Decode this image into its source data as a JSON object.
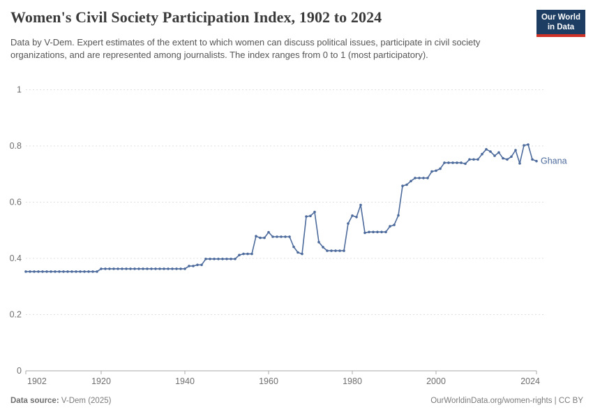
{
  "header": {
    "title": "Women's Civil Society Participation Index, 1902 to 2024",
    "subtitle": "Data by V-Dem. Expert estimates of the extent to which women can discuss political issues, participate in civil society organizations, and are represented among journalists. The index ranges from 0 to 1 (most participatory).",
    "logo": {
      "line1": "Our World",
      "line2": "in Data"
    }
  },
  "footer": {
    "source_label": "Data source:",
    "source_value": " V-Dem (2025)",
    "link": "OurWorldinData.org/women-rights | CC BY"
  },
  "chart_data": {
    "type": "line",
    "title": "Women's Civil Society Participation Index, 1902 to 2024",
    "xlabel": "",
    "ylabel": "",
    "xlim": [
      1902,
      2024
    ],
    "ylim": [
      0,
      1
    ],
    "x_ticks": [
      1902,
      1920,
      1940,
      1960,
      1980,
      2000,
      2024
    ],
    "y_ticks": [
      0,
      0.2,
      0.4,
      0.6,
      0.8,
      1
    ],
    "grid": "horizontal-dashed",
    "legend": "end-of-line-label",
    "colors": {
      "line": "#4c6a9c",
      "grid": "#dfdfdf",
      "axis": "#a8a8a8",
      "tick_label": "#6e6e6e"
    },
    "series": [
      {
        "name": "Ghana",
        "year_start": 1902,
        "year_step": 1,
        "values": [
          0.353,
          0.353,
          0.353,
          0.353,
          0.353,
          0.353,
          0.353,
          0.353,
          0.353,
          0.353,
          0.353,
          0.353,
          0.353,
          0.353,
          0.353,
          0.353,
          0.353,
          0.353,
          0.363,
          0.363,
          0.363,
          0.363,
          0.363,
          0.363,
          0.363,
          0.363,
          0.363,
          0.363,
          0.363,
          0.363,
          0.363,
          0.363,
          0.363,
          0.363,
          0.363,
          0.363,
          0.363,
          0.363,
          0.363,
          0.373,
          0.373,
          0.377,
          0.377,
          0.398,
          0.398,
          0.398,
          0.398,
          0.398,
          0.398,
          0.398,
          0.398,
          0.412,
          0.416,
          0.416,
          0.416,
          0.479,
          0.473,
          0.473,
          0.493,
          0.477,
          0.477,
          0.477,
          0.477,
          0.477,
          0.441,
          0.421,
          0.416,
          0.549,
          0.551,
          0.565,
          0.458,
          0.44,
          0.427,
          0.427,
          0.427,
          0.427,
          0.427,
          0.524,
          0.552,
          0.547,
          0.59,
          0.491,
          0.494,
          0.494,
          0.494,
          0.494,
          0.494,
          0.514,
          0.519,
          0.553,
          0.658,
          0.662,
          0.675,
          0.686,
          0.686,
          0.686,
          0.686,
          0.709,
          0.712,
          0.719,
          0.74,
          0.74,
          0.74,
          0.74,
          0.74,
          0.737,
          0.752,
          0.752,
          0.752,
          0.771,
          0.788,
          0.78,
          0.765,
          0.777,
          0.756,
          0.752,
          0.762,
          0.785,
          0.738,
          0.802,
          0.805,
          0.752,
          0.746
        ]
      }
    ]
  }
}
